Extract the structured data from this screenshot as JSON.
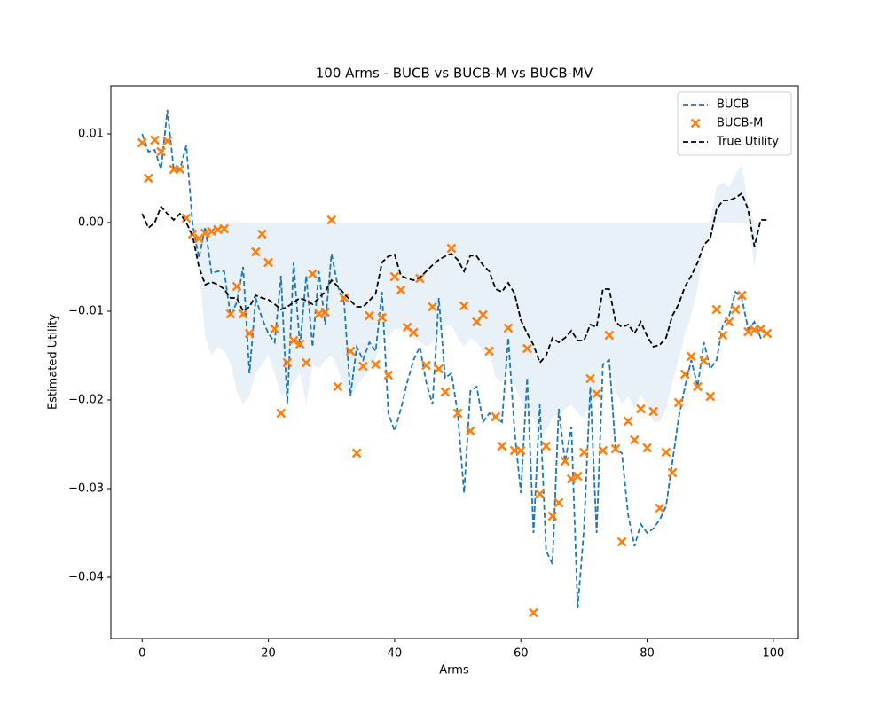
{
  "chart_data": {
    "type": "line",
    "title": "100 Arms - BUCB vs BUCB-M vs BUCB-MV",
    "xlabel": "Arms",
    "ylabel": "Estimated Utility",
    "x": [
      0,
      1,
      2,
      3,
      4,
      5,
      6,
      7,
      8,
      9,
      10,
      11,
      12,
      13,
      14,
      15,
      16,
      17,
      18,
      19,
      20,
      21,
      22,
      23,
      24,
      25,
      26,
      27,
      28,
      29,
      30,
      31,
      32,
      33,
      34,
      35,
      36,
      37,
      38,
      39,
      40,
      41,
      42,
      43,
      44,
      45,
      46,
      47,
      48,
      49,
      50,
      51,
      52,
      53,
      54,
      55,
      56,
      57,
      58,
      59,
      60,
      61,
      62,
      63,
      64,
      65,
      66,
      67,
      68,
      69,
      70,
      71,
      72,
      73,
      74,
      75,
      76,
      77,
      78,
      79,
      80,
      81,
      82,
      83,
      84,
      85,
      86,
      87,
      88,
      89,
      90,
      91,
      92,
      93,
      94,
      95,
      96,
      97,
      98,
      99
    ],
    "series": [
      {
        "name": "BUCB",
        "color": "#1f77b4",
        "style": "dashed",
        "values": [
          0.01,
          0.008,
          0.0082,
          0.006,
          0.0127,
          0.006,
          0.006,
          0.0087,
          -0.0002,
          -0.004,
          -0.0005,
          -0.0057,
          -0.0055,
          -0.0055,
          -0.0105,
          -0.009,
          -0.005,
          -0.017,
          -0.0085,
          -0.0108,
          -0.0125,
          -0.0135,
          -0.006,
          -0.0205,
          -0.0045,
          -0.014,
          -0.006,
          -0.014,
          -0.0055,
          -0.0115,
          -0.0035,
          -0.0072,
          -0.009,
          -0.0195,
          -0.014,
          -0.0155,
          -0.0135,
          -0.0145,
          -0.0078,
          -0.0215,
          -0.0235,
          -0.021,
          -0.018,
          -0.0155,
          -0.014,
          -0.018,
          -0.0205,
          -0.0085,
          -0.0175,
          -0.017,
          -0.0215,
          -0.0305,
          -0.019,
          -0.0185,
          -0.0225,
          -0.0215,
          -0.022,
          -0.0225,
          -0.013,
          -0.0235,
          -0.0305,
          -0.0175,
          -0.035,
          -0.0205,
          -0.037,
          -0.0385,
          -0.021,
          -0.027,
          -0.023,
          -0.0435,
          -0.0345,
          -0.0185,
          -0.035,
          -0.016,
          -0.0155,
          -0.0255,
          -0.026,
          -0.033,
          -0.0365,
          -0.034,
          -0.035,
          -0.0345,
          -0.0335,
          -0.032,
          -0.027,
          -0.022,
          -0.0185,
          -0.0155,
          -0.0185,
          -0.0135,
          -0.0165,
          -0.0155,
          -0.0115,
          -0.0105,
          -0.0078,
          -0.0085,
          -0.012,
          -0.0112,
          -0.013,
          -0.0125
        ]
      },
      {
        "name": "BUCB-M",
        "color": "#ff7f0e",
        "marker": "x",
        "values": [
          0.009,
          0.005,
          0.0093,
          0.008,
          0.0092,
          0.006,
          0.006,
          0.0005,
          -0.0013,
          -0.0018,
          -0.0012,
          -0.001,
          -0.0008,
          -0.0007,
          -0.0103,
          -0.0072,
          -0.0103,
          -0.0125,
          -0.0033,
          -0.0013,
          -0.0045,
          -0.012,
          -0.0215,
          -0.0158,
          -0.0133,
          -0.0137,
          -0.0158,
          -0.0058,
          -0.0103,
          -0.0101,
          0.0003,
          -0.0185,
          -0.0085,
          -0.0145,
          -0.026,
          -0.0162,
          -0.0105,
          -0.016,
          -0.0107,
          -0.0172,
          -0.0061,
          -0.0076,
          -0.0118,
          -0.0124,
          -0.0063,
          -0.0161,
          -0.0095,
          -0.0165,
          -0.0191,
          -0.0029,
          -0.0215,
          -0.0094,
          -0.0235,
          -0.0112,
          -0.0104,
          -0.0145,
          -0.0219,
          -0.0252,
          -0.0119,
          -0.0257,
          -0.0257,
          -0.0142,
          -0.044,
          -0.0306,
          -0.0252,
          -0.0331,
          -0.0316,
          -0.0269,
          -0.0289,
          -0.0286,
          -0.0259,
          -0.0176,
          -0.0193,
          -0.0257,
          -0.0127,
          -0.0255,
          -0.036,
          -0.0224,
          -0.0245,
          -0.021,
          -0.0254,
          -0.0213,
          -0.0322,
          -0.0259,
          -0.0282,
          -0.0203,
          -0.0171,
          -0.0151,
          -0.0185,
          -0.0156,
          -0.0196,
          -0.0098,
          -0.0127,
          -0.0112,
          -0.0098,
          -0.0082,
          -0.0123,
          -0.0121,
          -0.012,
          -0.0125
        ]
      },
      {
        "name": "True Utility",
        "color": "#000000",
        "style": "dashed",
        "values": [
          0.001,
          -0.0006,
          0,
          0.0018,
          0.001,
          0.0003,
          0.001,
          0,
          -0.0015,
          -0.005,
          -0.007,
          -0.0067,
          -0.007,
          -0.0075,
          -0.0085,
          -0.0085,
          -0.01,
          -0.0095,
          -0.0082,
          -0.0085,
          -0.0087,
          -0.0092,
          -0.0098,
          -0.0095,
          -0.009,
          -0.0085,
          -0.0088,
          -0.0092,
          -0.0085,
          -0.0078,
          -0.0065,
          -0.0072,
          -0.008,
          -0.0088,
          -0.0095,
          -0.0095,
          -0.0088,
          -0.008,
          -0.0045,
          -0.0038,
          -0.0036,
          -0.006,
          -0.0063,
          -0.0065,
          -0.0062,
          -0.0055,
          -0.0048,
          -0.0042,
          -0.0038,
          -0.0035,
          -0.0042,
          -0.0055,
          -0.0037,
          -0.0038,
          -0.0048,
          -0.0055,
          -0.0075,
          -0.0078,
          -0.0068,
          -0.008,
          -0.011,
          -0.0125,
          -0.0138,
          -0.0158,
          -0.015,
          -0.013,
          -0.0135,
          -0.013,
          -0.0122,
          -0.0133,
          -0.0133,
          -0.0115,
          -0.0118,
          -0.0075,
          -0.0075,
          -0.0112,
          -0.0118,
          -0.0115,
          -0.0125,
          -0.0112,
          -0.0128,
          -0.014,
          -0.0138,
          -0.013,
          -0.0105,
          -0.0092,
          -0.0072,
          -0.006,
          -0.0045,
          -0.0025,
          -0.0018,
          0.0015,
          0.0025,
          0.0025,
          0.0028,
          0.0033,
          0.0015,
          -0.0027,
          0.0003,
          0.0003
        ]
      }
    ],
    "band": {
      "color": "#1f77b4",
      "lower": [
        0,
        0,
        0,
        0,
        0,
        0,
        0,
        0,
        0,
        -0.005,
        -0.013,
        -0.015,
        -0.014,
        -0.0145,
        -0.016,
        -0.019,
        -0.0205,
        -0.0195,
        -0.017,
        -0.016,
        -0.015,
        -0.017,
        -0.0195,
        -0.019,
        -0.018,
        -0.017,
        -0.0205,
        -0.016,
        -0.0165,
        -0.0155,
        -0.015,
        -0.0165,
        -0.0185,
        -0.0195,
        -0.0185,
        -0.0175,
        -0.0165,
        -0.0155,
        -0.0125,
        -0.013,
        -0.012,
        -0.012,
        -0.0125,
        -0.013,
        -0.0135,
        -0.014,
        -0.0135,
        -0.0125,
        -0.0115,
        -0.0115,
        -0.013,
        -0.014,
        -0.013,
        -0.0135,
        -0.0145,
        -0.0145,
        -0.0175,
        -0.018,
        -0.0165,
        -0.0185,
        -0.02,
        -0.021,
        -0.022,
        -0.0245,
        -0.0235,
        -0.022,
        -0.0215,
        -0.021,
        -0.0205,
        -0.0215,
        -0.022,
        -0.0205,
        -0.02,
        -0.016,
        -0.0155,
        -0.019,
        -0.0205,
        -0.0195,
        -0.021,
        -0.0195,
        -0.0205,
        -0.0225,
        -0.0225,
        -0.021,
        -0.018,
        -0.0155,
        -0.0125,
        -0.0105,
        -0.0075,
        -0.003,
        -0.001,
        0,
        0,
        0,
        0,
        0,
        0,
        -0.005,
        0,
        0
      ],
      "upper": [
        0,
        0,
        0,
        0,
        0,
        0,
        0,
        0,
        0,
        0,
        0,
        0,
        0,
        0,
        0,
        0,
        0,
        0,
        0,
        0,
        0,
        0,
        0,
        0,
        0,
        0,
        0,
        0,
        0,
        0,
        0,
        0,
        0,
        0,
        0,
        0,
        0,
        0,
        0,
        0,
        0,
        0,
        0,
        0,
        0,
        0,
        0,
        0,
        0,
        0,
        0,
        0,
        0,
        0,
        0,
        0,
        0,
        0,
        0,
        0,
        0,
        0,
        0,
        0,
        0,
        0,
        0,
        0,
        0,
        0,
        0,
        0,
        0,
        0,
        0,
        0,
        0,
        0,
        0,
        0,
        0,
        0,
        0,
        0,
        0,
        0,
        0,
        0,
        0,
        0,
        0,
        0.004,
        0.0045,
        0.004,
        0.0055,
        0.0065,
        0.002,
        0,
        0,
        0
      ]
    },
    "xlim": [
      -4.95,
      103.95
    ],
    "ylim": [
      -0.0469,
      0.0154
    ],
    "xticks": [
      0,
      20,
      40,
      60,
      80,
      100
    ],
    "yticks": [
      {
        "value": -0.04,
        "label": "−0.04"
      },
      {
        "value": -0.03,
        "label": "−0.03"
      },
      {
        "value": -0.02,
        "label": "−0.02"
      },
      {
        "value": -0.01,
        "label": "−0.01"
      },
      {
        "value": 0,
        "label": "0.00"
      },
      0.01
    ],
    "legend": "upper right"
  }
}
